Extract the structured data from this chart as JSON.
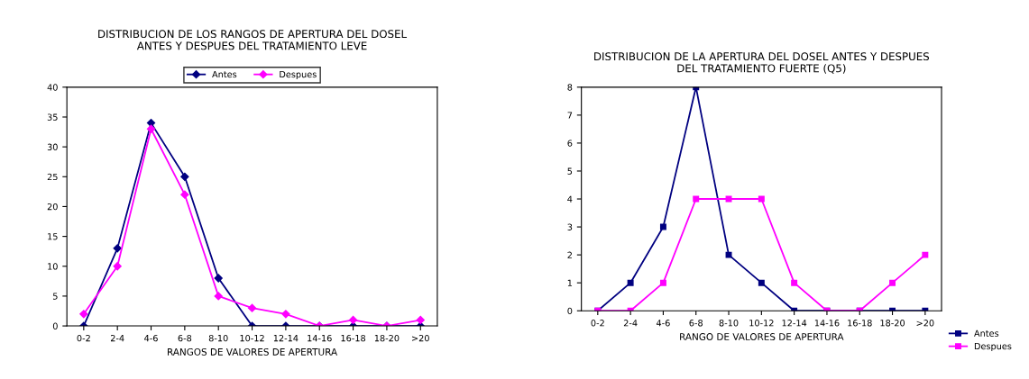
{
  "chart_data": [
    {
      "type": "line",
      "title": "DISTRIBUCION DE LOS RANGOS DE APERTURA DEL DOSEL\nANTES Y DESPUES DEL TRATAMIENTO LEVE",
      "xlabel": "RANGOS DE VALORES DE APERTURA",
      "categories": [
        "0-2",
        "2-4",
        "4-6",
        "6-8",
        "8-10",
        "10-12",
        "12-14",
        "14-16",
        "16-18",
        "18-20",
        ">20"
      ],
      "series": [
        {
          "name": "Antes",
          "color": "#000080",
          "values": [
            0,
            13,
            34,
            25,
            8,
            0,
            0,
            0,
            0,
            0,
            0
          ]
        },
        {
          "name": "Despues",
          "color": "#ff00ff",
          "values": [
            2,
            10,
            33,
            22,
            5,
            3,
            2,
            0,
            1,
            0,
            1
          ]
        }
      ],
      "ylim": [
        0,
        40
      ],
      "yticks": [
        0,
        5,
        10,
        15,
        20,
        25,
        30,
        35,
        40
      ],
      "legend": "top",
      "marker": "diamond",
      "grid": false
    },
    {
      "type": "line",
      "title": "DISTRIBUCION DE LA APERTURA DEL DOSEL ANTES Y DESPUES\nDEL TRATAMIENTO FUERTE (Q5)",
      "xlabel": "RANGO DE VALORES DE APERTURA",
      "categories": [
        "0-2",
        "2-4",
        "4-6",
        "6-8",
        "8-10",
        "10-12",
        "12-14",
        "14-16",
        "16-18",
        "18-20",
        ">20"
      ],
      "series": [
        {
          "name": "Antes",
          "color": "#000080",
          "values": [
            0,
            1,
            3,
            8,
            2,
            1,
            0,
            0,
            0,
            0,
            0
          ]
        },
        {
          "name": "Despues",
          "color": "#ff00ff",
          "values": [
            0,
            0,
            1,
            4,
            4,
            4,
            1,
            0,
            0,
            1,
            2
          ]
        }
      ],
      "ylim": [
        0,
        8
      ],
      "yticks": [
        0,
        1,
        2,
        3,
        4,
        5,
        6,
        7,
        8
      ],
      "legend": "bottom right",
      "marker": "square",
      "grid": false
    }
  ]
}
